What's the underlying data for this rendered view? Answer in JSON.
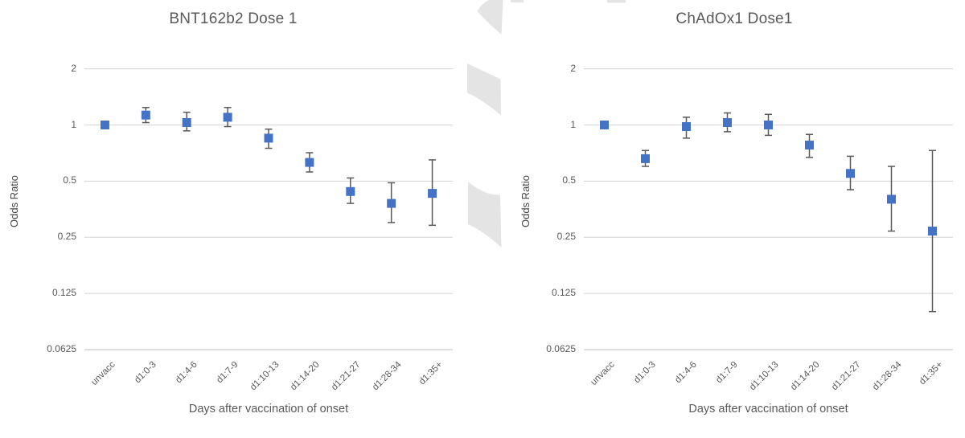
{
  "figure": {
    "background": "#ffffff"
  },
  "colors": {
    "marker": "#4472C4",
    "error_bar": "#595959",
    "gridline": "#D8D8D8",
    "axis_line": "#C4C4C4",
    "text": "#595959",
    "watermark": "#E4E4E4"
  },
  "chart_data": [
    {
      "type": "scatter",
      "title": "BNT162b2 Dose 1",
      "xlabel": "Days after vaccination of onset",
      "ylabel": "Odds Ratio",
      "yscale": "log2",
      "ylim": [
        0.0625,
        2
      ],
      "yticks": [
        2,
        1,
        0.5,
        0.25,
        0.125,
        0.0625
      ],
      "grid": "horizontal",
      "legend": "none",
      "marker_shape": "square",
      "categories": [
        "unvacc",
        "d1:0-3",
        "d1:4-6",
        "d1:7-9",
        "d1:10-13",
        "d1:14-20",
        "d1:21-27",
        "d1:28-34",
        "d1:35+"
      ],
      "series": [
        {
          "name": "Odds Ratio",
          "values": [
            1.0,
            1.13,
            1.03,
            1.1,
            0.85,
            0.63,
            0.44,
            0.38,
            0.43
          ],
          "ci_low": [
            null,
            1.03,
            0.93,
            0.98,
            0.75,
            0.56,
            0.38,
            0.3,
            0.29
          ],
          "ci_high": [
            null,
            1.24,
            1.17,
            1.24,
            0.95,
            0.71,
            0.52,
            0.49,
            0.65
          ]
        }
      ]
    },
    {
      "type": "scatter",
      "title": "ChAdOx1 Dose1",
      "xlabel": "Days after vaccination of onset",
      "ylabel": "Odds Ratio",
      "yscale": "log2",
      "ylim": [
        0.0625,
        2
      ],
      "yticks": [
        2,
        1,
        0.5,
        0.25,
        0.125,
        0.0625
      ],
      "grid": "horizontal",
      "legend": "none",
      "marker_shape": "square",
      "categories": [
        "unvacc",
        "d1:0-3",
        "d1:4-6",
        "d1:7-9",
        "d1:10-13",
        "d1:14-20",
        "d1:21-27",
        "d1:28-34",
        "d1:35+"
      ],
      "series": [
        {
          "name": "Odds Ratio",
          "values": [
            1.0,
            0.66,
            0.98,
            1.03,
            1.0,
            0.78,
            0.55,
            0.4,
            0.27
          ],
          "ci_low": [
            null,
            0.6,
            0.85,
            0.92,
            0.88,
            0.67,
            0.45,
            0.27,
            0.1
          ],
          "ci_high": [
            null,
            0.73,
            1.1,
            1.16,
            1.14,
            0.89,
            0.68,
            0.6,
            0.73
          ]
        }
      ]
    }
  ]
}
